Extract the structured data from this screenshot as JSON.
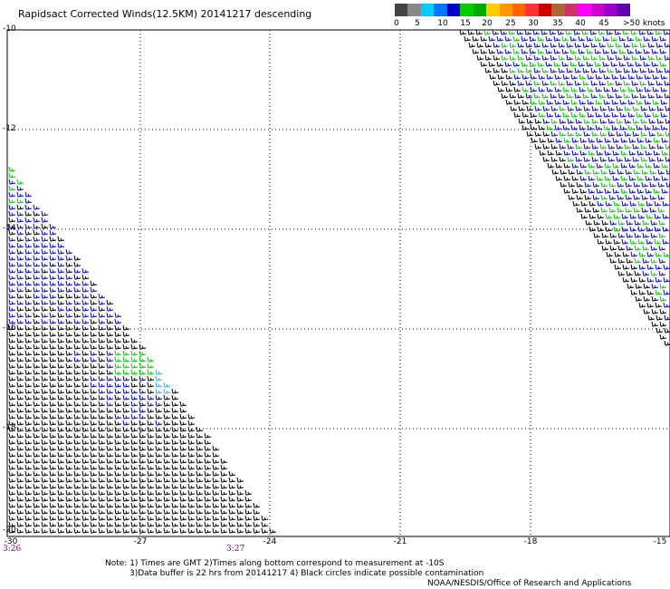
{
  "title": "Rapidsact Corrected Winds(12.5KM) 20141217 descending",
  "legend": {
    "colors": [
      "#444444",
      "#888888",
      "#00ccff",
      "#0077ff",
      "#0000cc",
      "#00cc00",
      "#00aa00",
      "#ffcc00",
      "#ff9900",
      "#ff6600",
      "#ff3333",
      "#cc0000",
      "#aa6633",
      "#cc3366",
      "#ff00ff",
      "#cc00cc",
      "#9900cc",
      "#6600aa"
    ],
    "labels": [
      "0",
      "5",
      "10",
      "15",
      "20",
      "25",
      "30",
      "35",
      "40",
      "45",
      ">50 knots"
    ]
  },
  "axes": {
    "y_labels": [
      "-10",
      "-12",
      "-14",
      "-16",
      "-18",
      "-20"
    ],
    "x_labels": [
      "-30",
      "-27",
      "-24",
      "-21",
      "-18",
      "-15"
    ]
  },
  "times": [
    "3:26",
    "3:27"
  ],
  "notes": [
    "Note: 1) Times are GMT 2)Times along bottom correspond to measurement at -10S",
    "3)Data buffer is 22 hrs from 20141217 4) Black circles indicate possible contamination"
  ],
  "credit": "NOAA/NESDIS/Office of Research and Applications",
  "wind_colors": {
    "low": "#000000",
    "mid": "#0000dd",
    "cyan": "#33aaff",
    "high": "#00cc00"
  }
}
